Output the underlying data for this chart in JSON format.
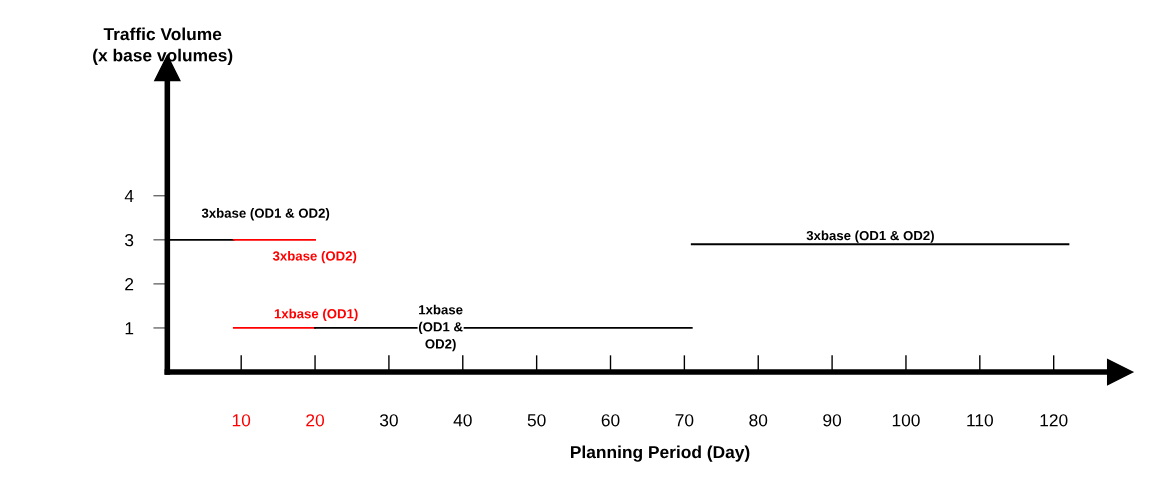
{
  "chart_data": {
    "type": "line",
    "xlabel": "Planning Period (Day)",
    "ylabel": "Traffic Volume\n(x base volumes)",
    "xlim": [
      0,
      129
    ],
    "xticks": [
      10,
      20,
      30,
      40,
      50,
      60,
      70,
      80,
      90,
      100,
      110,
      120
    ],
    "ylim": [
      0,
      6.9
    ],
    "yticks": [
      1,
      2,
      3,
      4
    ],
    "series": [
      {
        "color": "#000000",
        "x": [
          0,
          9
        ],
        "values": [
          3,
          3
        ]
      },
      {
        "color": "#ff0000",
        "x": [
          9,
          20
        ],
        "values": [
          3,
          3
        ]
      },
      {
        "color": "#ff0000",
        "x": [
          9,
          20
        ],
        "values": [
          1,
          1
        ]
      },
      {
        "color": "#000000",
        "x": [
          20,
          71
        ],
        "values": [
          1,
          1
        ]
      },
      {
        "color": "#000000",
        "x": [
          71,
          122
        ],
        "values": [
          2.9,
          2.9
        ]
      }
    ],
    "annotations": [
      {
        "text": "3xbase (OD1 & OD2)",
        "x": 5,
        "y": 3
      },
      {
        "text": "3xbase (OD2)",
        "x": 15,
        "y": 3
      },
      {
        "text": "1xbase (OD1)",
        "x": 15,
        "y": 1
      },
      {
        "text": "1xbase\n(OD1 &\nOD2)",
        "x": 37,
        "y": 1
      },
      {
        "text": "3xbase (OD1 & OD2)",
        "x": 105,
        "y": 2.9
      }
    ],
    "grid": false,
    "legend": false,
    "marker": "none",
    "line_style": "solid"
  }
}
